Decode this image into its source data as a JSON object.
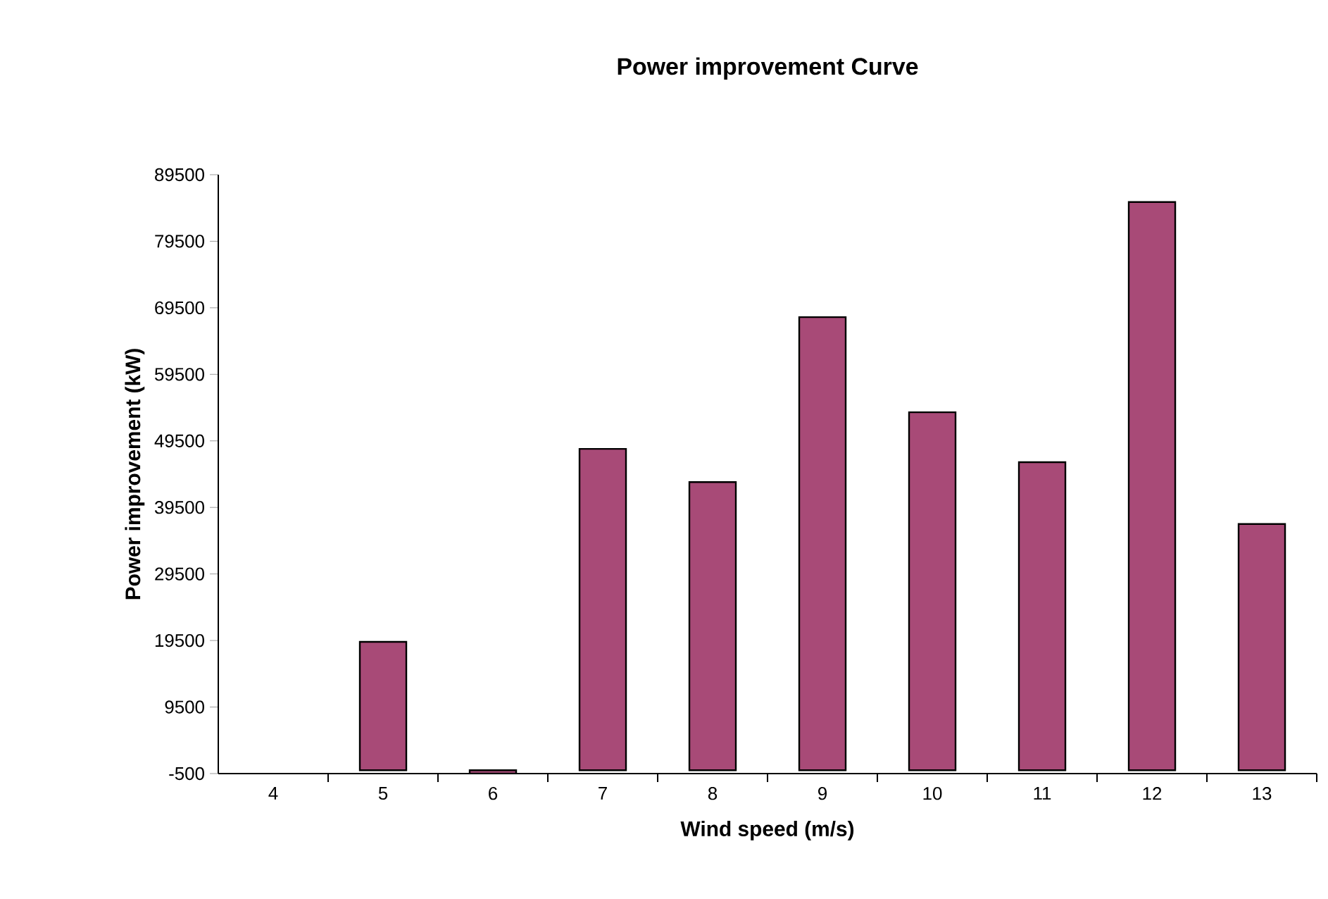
{
  "chart_data": {
    "type": "bar",
    "title": "Power improvement Curve",
    "xlabel": "Wind speed (m/s)",
    "ylabel": "Power improvement (kW)",
    "categories": [
      "4",
      "5",
      "6",
      "7",
      "8",
      "9",
      "10",
      "11",
      "12",
      "13"
    ],
    "values": [
      null,
      19300,
      -500,
      48300,
      43300,
      68100,
      53800,
      46300,
      85400,
      37000
    ],
    "color": "#a84a77",
    "ylim": [
      -500,
      89500
    ],
    "yticks": [
      -500,
      9500,
      19500,
      29500,
      39500,
      49500,
      59500,
      69500,
      79500,
      89500
    ],
    "grid": false
  }
}
